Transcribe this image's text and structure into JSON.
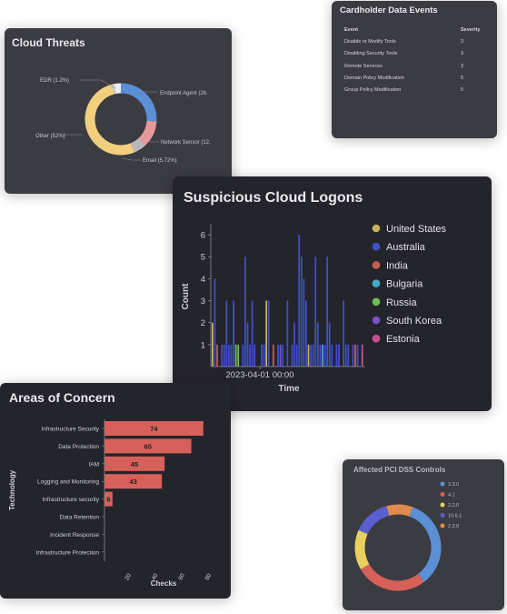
{
  "cloud_threats": {
    "title": "Cloud Threats",
    "labels": {
      "edr": "EDR (1.2%)",
      "other": "Other (52%)",
      "endpoint": "Endpoint Agent (26.",
      "network": "Network Sensor (12.",
      "email": "Email (5.72%)"
    },
    "segments": [
      {
        "name": "Endpoint Agent",
        "share": 0.26,
        "color": "#5b8fd6"
      },
      {
        "name": "Network Sensor",
        "share": 0.12,
        "color": "#e6989a"
      },
      {
        "name": "Email",
        "share": 0.0572,
        "color": "#b9b9bd"
      },
      {
        "name": "Other",
        "share": 0.52,
        "color": "#f2cf7d"
      },
      {
        "name": "EDR",
        "share": 0.012,
        "color": "#cfcfcf"
      },
      {
        "name": "Gap",
        "share": 0.0308,
        "color": "#eeeeee"
      }
    ]
  },
  "cardholder": {
    "title": "Cardholder Data Events",
    "col_event": "Event",
    "col_severity": "Severity",
    "rows": [
      {
        "event": "Disable or Modify Tools",
        "severity": "3"
      },
      {
        "event": "Disabling Security Tools",
        "severity": "3"
      },
      {
        "event": "Remote Services",
        "severity": "3"
      },
      {
        "event": "Domain Policy Modification",
        "severity": "5"
      },
      {
        "event": "Group Policy Modification",
        "severity": "5"
      }
    ]
  },
  "logons": {
    "title": "Suspicious Cloud Logons",
    "chart_data": {
      "type": "bar",
      "xlabel": "Time",
      "ylabel": "Count",
      "ylim": [
        0,
        6.5
      ],
      "yticks": [
        1,
        2,
        3,
        4,
        5,
        6
      ],
      "x_tick_label": "2023-04-01 00:00",
      "legend_position": "right",
      "series": [
        {
          "name": "United States",
          "color": "#c8b455"
        },
        {
          "name": "Australia",
          "color": "#3f4fc8"
        },
        {
          "name": "India",
          "color": "#c95b54"
        },
        {
          "name": "Bulgaria",
          "color": "#46a8c6"
        },
        {
          "name": "Russia",
          "color": "#6cbf54"
        },
        {
          "name": "South Korea",
          "color": "#7d4fc8"
        },
        {
          "name": "Estonia",
          "color": "#c94f92"
        }
      ],
      "bars": [
        {
          "i": 0,
          "v": 2,
          "s": 0
        },
        {
          "i": 1,
          "v": 4,
          "s": 1
        },
        {
          "i": 2,
          "v": 1,
          "s": 2
        },
        {
          "i": 4,
          "v": 1,
          "s": 1
        },
        {
          "i": 5,
          "v": 1,
          "s": 1
        },
        {
          "i": 6,
          "v": 3,
          "s": 1
        },
        {
          "i": 7,
          "v": 1,
          "s": 1
        },
        {
          "i": 8,
          "v": 1,
          "s": 1
        },
        {
          "i": 9,
          "v": 3,
          "s": 1
        },
        {
          "i": 10,
          "v": 1,
          "s": 4
        },
        {
          "i": 11,
          "v": 1,
          "s": 4
        },
        {
          "i": 13,
          "v": 1,
          "s": 1
        },
        {
          "i": 14,
          "v": 5,
          "s": 1
        },
        {
          "i": 15,
          "v": 2,
          "s": 1
        },
        {
          "i": 16,
          "v": 1,
          "s": 1
        },
        {
          "i": 17,
          "v": 3,
          "s": 1
        },
        {
          "i": 18,
          "v": 1,
          "s": 1
        },
        {
          "i": 21,
          "v": 1,
          "s": 1
        },
        {
          "i": 22,
          "v": 1,
          "s": 1
        },
        {
          "i": 23,
          "v": 3,
          "s": 0
        },
        {
          "i": 24,
          "v": 3,
          "s": 1
        },
        {
          "i": 26,
          "v": 1,
          "s": 2
        },
        {
          "i": 28,
          "v": 1,
          "s": 1
        },
        {
          "i": 29,
          "v": 1,
          "s": 5
        },
        {
          "i": 30,
          "v": 1,
          "s": 1
        },
        {
          "i": 32,
          "v": 3,
          "s": 1
        },
        {
          "i": 34,
          "v": 1,
          "s": 1
        },
        {
          "i": 35,
          "v": 2,
          "s": 1
        },
        {
          "i": 36,
          "v": 1,
          "s": 1
        },
        {
          "i": 37,
          "v": 6,
          "s": 1
        },
        {
          "i": 38,
          "v": 5,
          "s": 1
        },
        {
          "i": 39,
          "v": 4,
          "s": 1
        },
        {
          "i": 40,
          "v": 3,
          "s": 1
        },
        {
          "i": 41,
          "v": 1,
          "s": 0
        },
        {
          "i": 42,
          "v": 1,
          "s": 1
        },
        {
          "i": 43,
          "v": 1,
          "s": 1
        },
        {
          "i": 44,
          "v": 5,
          "s": 1
        },
        {
          "i": 45,
          "v": 2,
          "s": 1
        },
        {
          "i": 46,
          "v": 1,
          "s": 1
        },
        {
          "i": 47,
          "v": 1,
          "s": 3
        },
        {
          "i": 48,
          "v": 1,
          "s": 1
        },
        {
          "i": 49,
          "v": 5,
          "s": 1
        },
        {
          "i": 50,
          "v": 2,
          "s": 1
        },
        {
          "i": 51,
          "v": 1,
          "s": 1
        },
        {
          "i": 53,
          "v": 1,
          "s": 1
        },
        {
          "i": 54,
          "v": 1,
          "s": 1
        },
        {
          "i": 56,
          "v": 3,
          "s": 1
        },
        {
          "i": 57,
          "v": 1,
          "s": 1
        },
        {
          "i": 58,
          "v": 1,
          "s": 1
        },
        {
          "i": 60,
          "v": 1,
          "s": 1
        },
        {
          "i": 61,
          "v": 1,
          "s": 2
        },
        {
          "i": 62,
          "v": 1,
          "s": 1
        },
        {
          "i": 64,
          "v": 1,
          "s": 6
        }
      ],
      "bar_slots": 66
    }
  },
  "areas": {
    "title": "Areas of Concern",
    "chart_data": {
      "type": "bar",
      "orientation": "horizontal",
      "xlabel": "Checks",
      "ylabel": "Technology",
      "xlim": [
        0,
        90
      ],
      "xticks": [
        20,
        40,
        60,
        80
      ],
      "bar_color": "#d8605a",
      "categories": [
        "Infrastructure Security",
        "Data Protection",
        "IAM",
        "Logging and Monitoring",
        "Infrastructure security",
        "Data Retention",
        "Incident Response",
        "Infrastructure Protection"
      ],
      "values": [
        74,
        65,
        45,
        43,
        6,
        0,
        0,
        0
      ]
    }
  },
  "pci": {
    "title": "Affected PCI DSS Controls",
    "legend": [
      "3.3.0",
      "4.1",
      "2.2.0",
      "10.6.1",
      "2.2.0"
    ],
    "segments": [
      {
        "share": 0.34,
        "color": "#5b8fd6"
      },
      {
        "share": 0.27,
        "color": "#d8605a"
      },
      {
        "share": 0.15,
        "color": "#e8cf5e"
      },
      {
        "share": 0.14,
        "color": "#5a5fd0"
      },
      {
        "share": 0.1,
        "color": "#e08a4e"
      }
    ],
    "legend_colors": [
      "#5b8fd6",
      "#d8605a",
      "#e8cf5e",
      "#5a5fd0",
      "#e08a4e"
    ]
  }
}
